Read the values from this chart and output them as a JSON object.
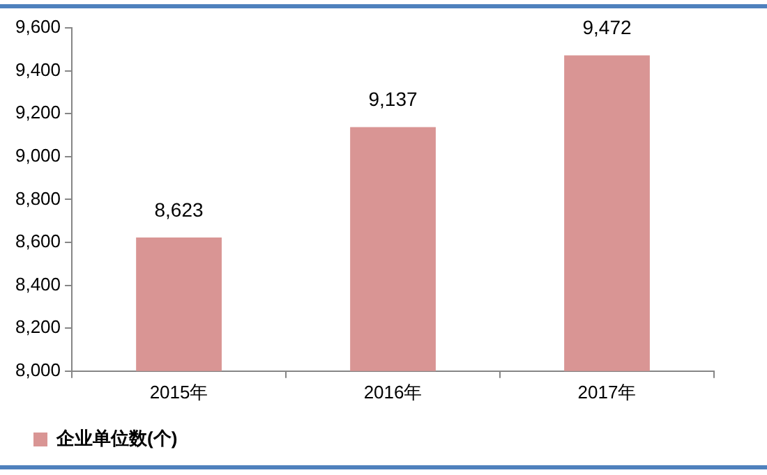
{
  "chart_data": {
    "type": "bar",
    "categories": [
      "2015年",
      "2016年",
      "2017年"
    ],
    "series": [
      {
        "name": "企业单位数(个)",
        "color": "#d99594",
        "values": [
          8623,
          9137,
          9472
        ]
      }
    ],
    "ylim": [
      8000,
      9600
    ],
    "yticks": [
      {
        "value": 8000,
        "label": "8,000"
      },
      {
        "value": 8200,
        "label": "8,200"
      },
      {
        "value": 8400,
        "label": "8,400"
      },
      {
        "value": 8600,
        "label": "8,600"
      },
      {
        "value": 8800,
        "label": "8,800"
      },
      {
        "value": 9000,
        "label": "9,000"
      },
      {
        "value": 9200,
        "label": "9,200"
      },
      {
        "value": 9400,
        "label": "9,400"
      },
      {
        "value": 9600,
        "label": "9,600"
      }
    ],
    "value_labels": [
      "8,623",
      "9,137",
      "9,472"
    ],
    "grid": false,
    "legend": "bottom"
  }
}
